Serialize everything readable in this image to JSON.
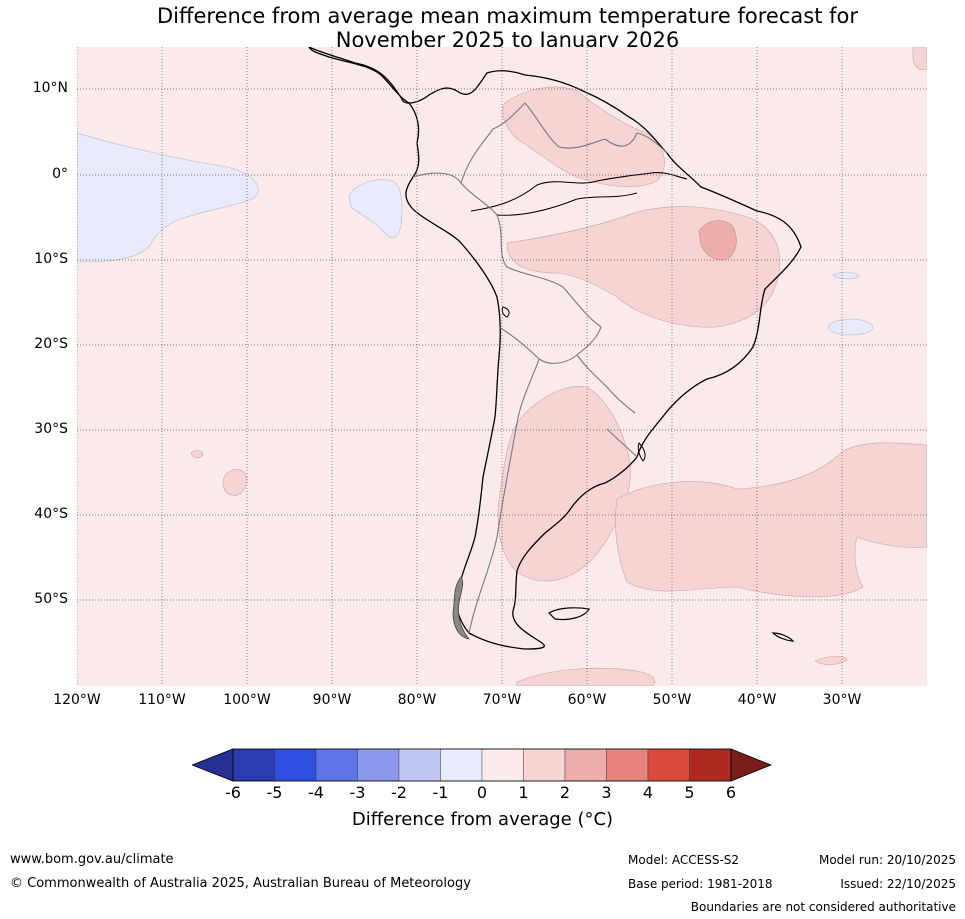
{
  "title": {
    "line1": "Difference from average mean maximum temperature forecast for",
    "line2": "November 2025 to January 2026"
  },
  "map": {
    "latitude_labels": [
      "10°N",
      "0°",
      "10°S",
      "20°S",
      "30°S",
      "40°S",
      "50°S"
    ],
    "longitude_labels": [
      "120°W",
      "110°W",
      "100°W",
      "90°W",
      "80°W",
      "70°W",
      "60°W",
      "50°W",
      "40°W",
      "30°W"
    ],
    "land_outline_color": "#000000",
    "border_color": "#7a7a7a",
    "graticule_color": "#555555"
  },
  "colorbar": {
    "ticks": [
      "-6",
      "-5",
      "-4",
      "-3",
      "-2",
      "-1",
      "0",
      "1",
      "2",
      "3",
      "4",
      "5",
      "6"
    ],
    "colors": [
      "#252f94",
      "#2a3cb0",
      "#2f4fe0",
      "#5f74e6",
      "#8a99ee",
      "#c1c7f3",
      "#e8ebfb",
      "#fbeaea",
      "#f5d4d3",
      "#ecaeab",
      "#e8837c",
      "#dc4a3e",
      "#ad2a22",
      "#7a1c19"
    ],
    "label": "Difference from average (°C)"
  },
  "footer": {
    "website": "www.bom.gov.au/climate",
    "copyright": "© Commonwealth of Australia 2025, Australian Bureau of Meteorology",
    "model": "Model: ACCESS-S2",
    "base_period": "Base period: 1981-2018",
    "model_run": "Model run: 20/10/2025",
    "issued": "Issued: 22/10/2025",
    "disclaimer": "Boundaries are not considered authoritative"
  }
}
